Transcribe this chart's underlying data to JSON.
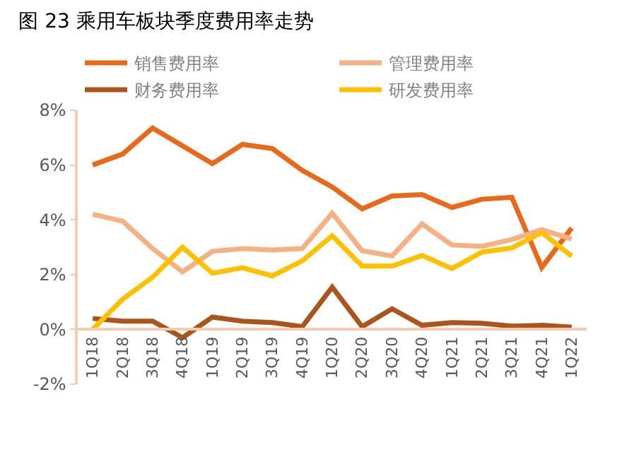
{
  "chart_data": {
    "type": "line",
    "title": "图 23 乘用车板块季度费用率走势",
    "categories": [
      "1Q18",
      "2Q18",
      "3Q18",
      "4Q18",
      "1Q19",
      "2Q19",
      "3Q19",
      "4Q19",
      "1Q20",
      "2Q20",
      "3Q20",
      "4Q20",
      "1Q21",
      "2Q21",
      "3Q21",
      "4Q21",
      "1Q22"
    ],
    "series": [
      {
        "name": "销售费用率",
        "color": "#e8691b",
        "values": [
          6.0,
          6.4,
          7.35,
          6.7,
          6.05,
          6.75,
          6.6,
          5.8,
          5.2,
          4.4,
          4.87,
          4.92,
          4.45,
          4.75,
          4.82,
          2.26,
          3.7
        ]
      },
      {
        "name": "管理费用率",
        "color": "#f4b183",
        "values": [
          4.2,
          3.95,
          2.95,
          2.1,
          2.85,
          2.95,
          2.9,
          2.95,
          4.24,
          2.87,
          2.68,
          3.85,
          3.08,
          3.03,
          3.28,
          3.64,
          3.3
        ]
      },
      {
        "name": "财务费用率",
        "color": "#a9561e",
        "values": [
          0.4,
          0.3,
          0.3,
          -0.3,
          0.45,
          0.3,
          0.25,
          0.1,
          1.54,
          0.1,
          0.75,
          0.15,
          0.25,
          0.22,
          0.12,
          0.15,
          0.08
        ]
      },
      {
        "name": "研发费用率",
        "color": "#ffc000",
        "values": [
          0.0,
          1.1,
          1.9,
          3.0,
          2.05,
          2.25,
          1.95,
          2.5,
          3.42,
          2.31,
          2.31,
          2.7,
          2.22,
          2.82,
          2.97,
          3.54,
          2.67
        ]
      }
    ],
    "ylim": [
      -2,
      8
    ],
    "yticks": [
      {
        "value": -2,
        "label": "-2%"
      },
      {
        "value": 0,
        "label": "0%"
      },
      {
        "value": 2,
        "label": "2%"
      },
      {
        "value": 4,
        "label": "4%"
      },
      {
        "value": 6,
        "label": "6%"
      },
      {
        "value": 8,
        "label": "8%"
      }
    ],
    "legend": "top",
    "marker": "none",
    "line_style": "solid"
  }
}
